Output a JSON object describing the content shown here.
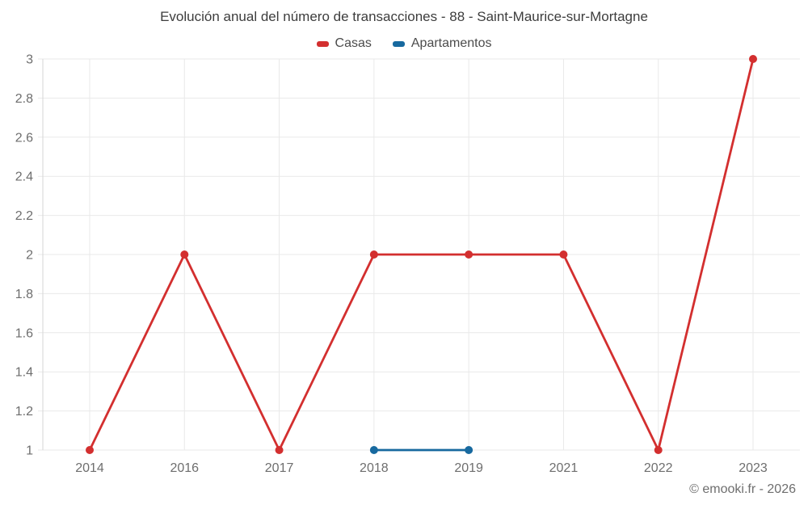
{
  "title": "Evolución anual del número de transacciones - 88 - Saint-Maurice-sur-Mortagne",
  "legend": [
    {
      "label": "Casas",
      "color": "#d32f2f"
    },
    {
      "label": "Apartamentos",
      "color": "#17699f"
    }
  ],
  "footer_credit": "© emooki.fr - 2026",
  "chart_data": {
    "type": "line",
    "title": "Evolución anual del número de transacciones - 88 - Saint-Maurice-sur-Mortagne",
    "categories": [
      "2014",
      "2016",
      "2017",
      "2018",
      "2019",
      "2021",
      "2022",
      "2023"
    ],
    "series": [
      {
        "name": "Casas",
        "color": "#d32f2f",
        "values": [
          1,
          2,
          1,
          2,
          2,
          2,
          1,
          3
        ]
      },
      {
        "name": "Apartamentos",
        "color": "#17699f",
        "values": [
          null,
          null,
          null,
          1,
          1,
          null,
          null,
          null
        ]
      }
    ],
    "xlabel": "",
    "ylabel": "",
    "ylim": [
      1,
      3
    ],
    "yticks": [
      1,
      1.2,
      1.4,
      1.6,
      1.8,
      2,
      2.2,
      2.4,
      2.6,
      2.8,
      3
    ],
    "ytick_labels": [
      "1",
      "1.2",
      "1.4",
      "1.6",
      "1.8",
      "2",
      "2.2",
      "2.4",
      "2.6",
      "2.8",
      "3"
    ],
    "grid": true,
    "legend_position": "top",
    "grid_color": "#e9e9e9",
    "axis_color": "#d6d6d6",
    "tick_label_color": "#6e6e6e"
  }
}
